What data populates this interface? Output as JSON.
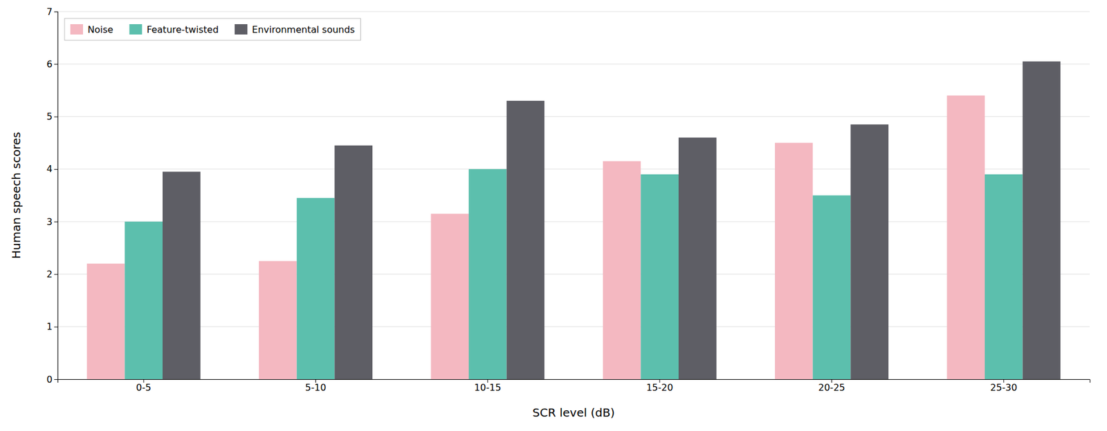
{
  "chart_data": {
    "type": "bar",
    "xlabel": "SCR level (dB)",
    "ylabel": "Human speech scores",
    "categories": [
      "0-5",
      "5-10",
      "10-15",
      "15-20",
      "20-25",
      "25-30"
    ],
    "series": [
      {
        "name": "Noise",
        "color": "#f4b8c1",
        "values": [
          2.2,
          2.25,
          3.15,
          4.15,
          4.5,
          5.4
        ]
      },
      {
        "name": "Feature-twisted",
        "color": "#5cbfad",
        "values": [
          3.0,
          3.45,
          4.0,
          3.9,
          3.5,
          3.9
        ]
      },
      {
        "name": "Environmental sounds",
        "color": "#5e5e65",
        "values": [
          3.95,
          4.45,
          5.3,
          4.6,
          4.85,
          6.05
        ]
      }
    ],
    "ylim": [
      0,
      7
    ],
    "yticks": [
      0,
      1,
      2,
      3,
      4,
      5,
      6,
      7
    ],
    "grid": true,
    "legend": "upper left"
  }
}
